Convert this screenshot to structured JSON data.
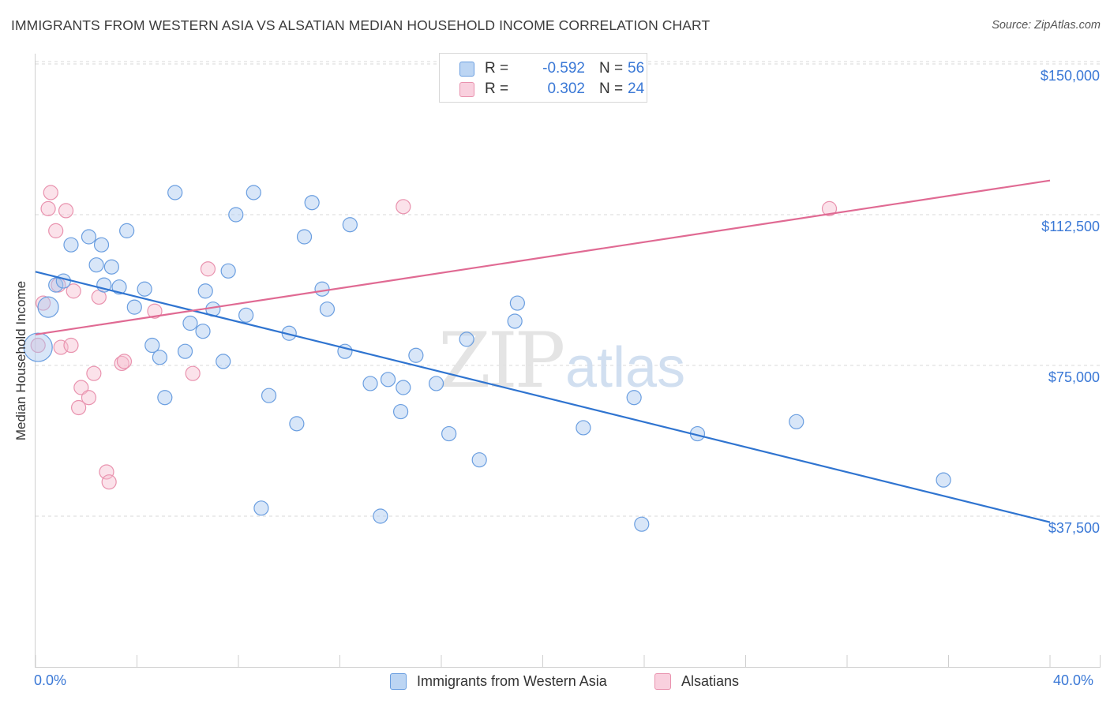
{
  "header": {
    "title": "IMMIGRANTS FROM WESTERN ASIA VS ALSATIAN MEDIAN HOUSEHOLD INCOME CORRELATION CHART",
    "source": "Source: ZipAtlas.com"
  },
  "watermark": {
    "zip": "ZIP",
    "atlas": "atlas"
  },
  "legend_top": [
    {
      "r_label": "R =",
      "r_value": "-0.592",
      "n_label": "N =",
      "n_value": "56"
    },
    {
      "r_label": "R =",
      "r_value": "0.302",
      "n_label": "N =",
      "n_value": "24"
    }
  ],
  "legend_bottom": [
    "Immigrants from Western Asia",
    "Alsatians"
  ],
  "chart_data": {
    "type": "scatter",
    "title": "IMMIGRANTS FROM WESTERN ASIA VS ALSATIAN MEDIAN HOUSEHOLD INCOME CORRELATION CHART",
    "xlabel": "",
    "ylabel": "Median Household Income",
    "xlim": [
      0,
      40
    ],
    "ylim": [
      0,
      152000
    ],
    "x_tick_labels": [
      "0.0%",
      "40.0%"
    ],
    "y_ticks": [
      37500,
      75000,
      112500,
      150000
    ],
    "y_tick_labels": [
      "$37,500",
      "$75,000",
      "$112,500",
      "$150,000"
    ],
    "grid": "horizontal dashed",
    "legend_position": "top-center and bottom",
    "colors": {
      "blue_fill": "#a9c8ef",
      "blue_stroke": "#6a9ee0",
      "blue_line": "#2f74d0",
      "pink_fill": "#f6bfd0",
      "pink_stroke": "#e992ae",
      "pink_line": "#e06a93"
    },
    "series": [
      {
        "name": "Immigrants from Western Asia",
        "color": "#6a9ee0",
        "r": -0.592,
        "n": 56,
        "trend": {
          "x": [
            0,
            40
          ],
          "y": [
            98300,
            36000
          ]
        },
        "points": [
          {
            "x": 0.1,
            "y": 79500,
            "s": 3
          },
          {
            "x": 0.5,
            "y": 89500,
            "s": 2
          },
          {
            "x": 0.8,
            "y": 95000,
            "s": 1
          },
          {
            "x": 1.1,
            "y": 96000,
            "s": 1
          },
          {
            "x": 1.4,
            "y": 105000,
            "s": 1
          },
          {
            "x": 2.1,
            "y": 107000,
            "s": 1
          },
          {
            "x": 2.4,
            "y": 100000,
            "s": 1
          },
          {
            "x": 2.6,
            "y": 105000,
            "s": 1
          },
          {
            "x": 2.7,
            "y": 95000,
            "s": 1
          },
          {
            "x": 3.0,
            "y": 99500,
            "s": 1
          },
          {
            "x": 3.3,
            "y": 94500,
            "s": 1
          },
          {
            "x": 3.6,
            "y": 108500,
            "s": 1
          },
          {
            "x": 3.9,
            "y": 89500,
            "s": 1
          },
          {
            "x": 4.3,
            "y": 94000,
            "s": 1
          },
          {
            "x": 4.6,
            "y": 80000,
            "s": 1
          },
          {
            "x": 4.9,
            "y": 77000,
            "s": 1
          },
          {
            "x": 5.1,
            "y": 67000,
            "s": 1
          },
          {
            "x": 5.5,
            "y": 118000,
            "s": 1
          },
          {
            "x": 5.9,
            "y": 78500,
            "s": 1
          },
          {
            "x": 6.1,
            "y": 85500,
            "s": 1
          },
          {
            "x": 6.6,
            "y": 83500,
            "s": 1
          },
          {
            "x": 6.7,
            "y": 93500,
            "s": 1
          },
          {
            "x": 7.0,
            "y": 89000,
            "s": 1
          },
          {
            "x": 7.4,
            "y": 76000,
            "s": 1
          },
          {
            "x": 7.6,
            "y": 98500,
            "s": 1
          },
          {
            "x": 7.9,
            "y": 112500,
            "s": 1
          },
          {
            "x": 8.3,
            "y": 87500,
            "s": 1
          },
          {
            "x": 8.6,
            "y": 118000,
            "s": 1
          },
          {
            "x": 8.9,
            "y": 39500,
            "s": 1
          },
          {
            "x": 9.2,
            "y": 67500,
            "s": 1
          },
          {
            "x": 10.0,
            "y": 83000,
            "s": 1
          },
          {
            "x": 10.3,
            "y": 60500,
            "s": 1
          },
          {
            "x": 10.6,
            "y": 107000,
            "s": 1
          },
          {
            "x": 10.9,
            "y": 115500,
            "s": 1
          },
          {
            "x": 11.3,
            "y": 94000,
            "s": 1
          },
          {
            "x": 11.5,
            "y": 89000,
            "s": 1
          },
          {
            "x": 12.2,
            "y": 78500,
            "s": 1
          },
          {
            "x": 12.4,
            "y": 110000,
            "s": 1
          },
          {
            "x": 13.2,
            "y": 70500,
            "s": 1
          },
          {
            "x": 13.6,
            "y": 37500,
            "s": 1
          },
          {
            "x": 13.9,
            "y": 71500,
            "s": 1
          },
          {
            "x": 14.4,
            "y": 63500,
            "s": 1
          },
          {
            "x": 14.5,
            "y": 69500,
            "s": 1
          },
          {
            "x": 15.0,
            "y": 77500,
            "s": 1
          },
          {
            "x": 15.8,
            "y": 70500,
            "s": 1
          },
          {
            "x": 16.3,
            "y": 58000,
            "s": 1
          },
          {
            "x": 17.0,
            "y": 81500,
            "s": 1
          },
          {
            "x": 17.5,
            "y": 51500,
            "s": 1
          },
          {
            "x": 18.9,
            "y": 86000,
            "s": 1
          },
          {
            "x": 19.0,
            "y": 90500,
            "s": 1
          },
          {
            "x": 21.6,
            "y": 59500,
            "s": 1
          },
          {
            "x": 23.6,
            "y": 67000,
            "s": 1
          },
          {
            "x": 23.9,
            "y": 35500,
            "s": 1
          },
          {
            "x": 26.1,
            "y": 58000,
            "s": 1
          },
          {
            "x": 30.0,
            "y": 61000,
            "s": 1
          },
          {
            "x": 35.8,
            "y": 46500,
            "s": 1
          }
        ]
      },
      {
        "name": "Alsatians",
        "color": "#e992ae",
        "r": 0.302,
        "n": 24,
        "trend": {
          "x": [
            0,
            40
          ],
          "y": [
            82700,
            121000
          ]
        },
        "points": [
          {
            "x": 0.1,
            "y": 80000,
            "s": 1
          },
          {
            "x": 0.3,
            "y": 90500,
            "s": 1
          },
          {
            "x": 0.5,
            "y": 114000,
            "s": 1
          },
          {
            "x": 0.6,
            "y": 118000,
            "s": 1
          },
          {
            "x": 0.8,
            "y": 108500,
            "s": 1
          },
          {
            "x": 0.9,
            "y": 95000,
            "s": 1
          },
          {
            "x": 1.0,
            "y": 79500,
            "s": 1
          },
          {
            "x": 1.2,
            "y": 113500,
            "s": 1
          },
          {
            "x": 1.4,
            "y": 80000,
            "s": 1
          },
          {
            "x": 1.5,
            "y": 93500,
            "s": 1
          },
          {
            "x": 1.7,
            "y": 64500,
            "s": 1
          },
          {
            "x": 1.8,
            "y": 69500,
            "s": 1
          },
          {
            "x": 2.1,
            "y": 67000,
            "s": 1
          },
          {
            "x": 2.3,
            "y": 73000,
            "s": 1
          },
          {
            "x": 2.5,
            "y": 92000,
            "s": 1
          },
          {
            "x": 2.8,
            "y": 48500,
            "s": 1
          },
          {
            "x": 2.9,
            "y": 46000,
            "s": 1
          },
          {
            "x": 3.4,
            "y": 75500,
            "s": 1
          },
          {
            "x": 3.5,
            "y": 76000,
            "s": 1
          },
          {
            "x": 4.7,
            "y": 88500,
            "s": 1
          },
          {
            "x": 6.2,
            "y": 73000,
            "s": 1
          },
          {
            "x": 6.8,
            "y": 99000,
            "s": 1
          },
          {
            "x": 14.5,
            "y": 114500,
            "s": 1
          },
          {
            "x": 31.3,
            "y": 114000,
            "s": 1
          }
        ]
      }
    ]
  }
}
